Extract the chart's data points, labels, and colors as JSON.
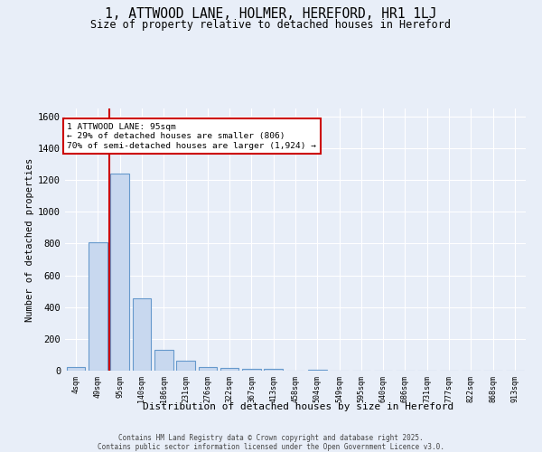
{
  "title": "1, ATTWOOD LANE, HOLMER, HEREFORD, HR1 1LJ",
  "subtitle": "Size of property relative to detached houses in Hereford",
  "xlabel": "Distribution of detached houses by size in Hereford",
  "ylabel": "Number of detached properties",
  "bar_color": "#c8d8ef",
  "bar_edge_color": "#6699cc",
  "categories": [
    "4sqm",
    "49sqm",
    "95sqm",
    "140sqm",
    "186sqm",
    "231sqm",
    "276sqm",
    "322sqm",
    "367sqm",
    "413sqm",
    "458sqm",
    "504sqm",
    "549sqm",
    "595sqm",
    "640sqm",
    "686sqm",
    "731sqm",
    "777sqm",
    "822sqm",
    "868sqm",
    "913sqm"
  ],
  "values": [
    20,
    810,
    1240,
    455,
    130,
    62,
    22,
    15,
    10,
    10,
    0,
    8,
    0,
    0,
    0,
    0,
    0,
    0,
    0,
    0,
    0
  ],
  "ylim": [
    0,
    1650
  ],
  "yticks": [
    0,
    200,
    400,
    600,
    800,
    1000,
    1200,
    1400,
    1600
  ],
  "red_line_x": 1.5,
  "annotation_text": "1 ATTWOOD LANE: 95sqm\n← 29% of detached houses are smaller (806)\n70% of semi-detached houses are larger (1,924) →",
  "annotation_box_color": "#ffffff",
  "annotation_text_color": "#000000",
  "annotation_border_color": "#cc0000",
  "red_line_color": "#cc0000",
  "background_color": "#e8eef8",
  "plot_bg_color": "#e8eef8",
  "grid_color": "#ffffff",
  "footer_line1": "Contains HM Land Registry data © Crown copyright and database right 2025.",
  "footer_line2": "Contains public sector information licensed under the Open Government Licence v3.0."
}
